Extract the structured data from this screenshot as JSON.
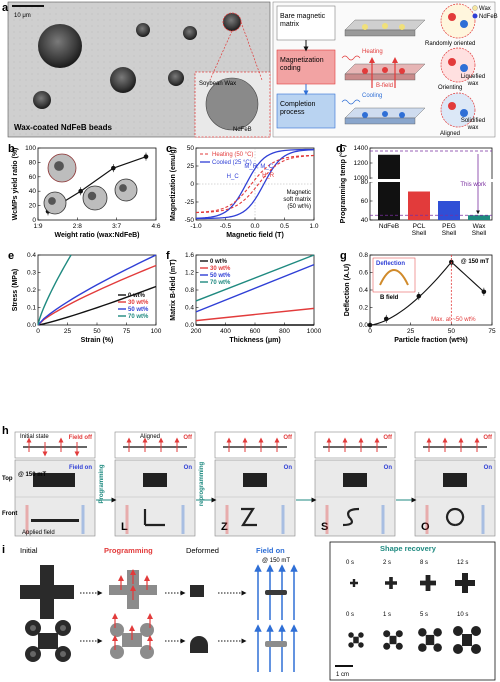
{
  "panel_a": {
    "label": "a",
    "scale": "10 μm",
    "caption": "Wax-coated NdFeB beads",
    "inset_wax": "Soybean\nWax",
    "inset_ndfeb": "NdFeB",
    "legend_wax": "Wax",
    "legend_ndfeb": "NdFeB",
    "steps": [
      {
        "name": "Bare magnetic\nmatrix",
        "note": "Randomly oriented",
        "extra": ""
      },
      {
        "name": "Magnetization\ncoding",
        "note": "Liquefied\nwax",
        "extra": "Heating",
        "extra2": "B-field",
        "note2": "Orienting"
      },
      {
        "name": "Completion\nprocess",
        "note": "Solidified\nwax",
        "extra": "Cooling",
        "note2": "Aligned"
      }
    ],
    "colors": {
      "red": "#e23b3b",
      "blue": "#2f6fd6",
      "pink": "#f7c6c6",
      "lightblue": "#b9d3f1"
    }
  },
  "panel_b": {
    "label": "b",
    "ylabel": "WcMPs yield ratio (%)",
    "xlabel": "Weight ratio (wax:NdFeB)",
    "ticks_y": [
      "0",
      "20",
      "40",
      "60",
      "80",
      "100"
    ],
    "chart_data": {
      "type": "line",
      "categories": [
        "1:9",
        "2:8",
        "3:7",
        "4:6"
      ],
      "values": [
        12,
        40,
        72,
        88
      ],
      "ylim": [
        0,
        100
      ]
    }
  },
  "panel_c": {
    "label": "c",
    "ylabel": "Magnetization (emu/g)",
    "xlabel": "Magnetic field (T)",
    "legend": [
      "Heating (50 °C)",
      "Cooled (25 °C)"
    ],
    "ticks_x": [
      "-1.0",
      "-0.5",
      "0.0",
      "0.5",
      "1.0"
    ],
    "ticks_y": [
      "-50",
      "-25",
      "0",
      "25",
      "50"
    ],
    "labels": {
      "mr": "M_R, M_C",
      "hc": "H_C",
      "hr": "H_R",
      "note": "Magnetic\nsoft matrix\n(50 wt%)"
    }
  },
  "panel_d": {
    "label": "d",
    "ylabel": "Programming temp (°C)",
    "ticks_y": [
      "40",
      "60",
      "80",
      "1000",
      "1200",
      "1400"
    ],
    "note": "This work",
    "chart_data": {
      "type": "bar",
      "categories": [
        "NdFeB",
        "PCL\nShell",
        "PEG\nShell",
        "Wax\nShell"
      ],
      "values": [
        1310,
        70,
        60,
        45
      ],
      "colors": [
        "#111111",
        "#e23b3b",
        "#2f4fd6",
        "#1f8a80"
      ]
    }
  },
  "panel_e": {
    "label": "e",
    "ylabel": "Stress (MPa)",
    "xlabel": "Strain (%)",
    "ticks_x": [
      "0",
      "25",
      "50",
      "75",
      "100"
    ],
    "ticks_y": [
      "0.0",
      "0.1",
      "0.2",
      "0.3",
      "0.4"
    ],
    "chart_data": {
      "type": "line",
      "series": [
        {
          "name": "0 wt%",
          "color": "#111111",
          "x": [
            0,
            100
          ],
          "y": [
            0,
            0.22
          ]
        },
        {
          "name": "30 wt%",
          "color": "#e23b3b",
          "x": [
            0,
            100
          ],
          "y": [
            0,
            0.34
          ]
        },
        {
          "name": "50 wt%",
          "color": "#2f3fd6",
          "x": [
            0,
            100
          ],
          "y": [
            0,
            0.4
          ]
        },
        {
          "name": "70 wt%",
          "color": "#1f8a80",
          "x": [
            0,
            28
          ],
          "y": [
            0,
            0.4
          ]
        }
      ]
    }
  },
  "panel_f": {
    "label": "f",
    "ylabel": "Matrix B-field (mT)",
    "xlabel": "Thickness (μm)",
    "ticks_x": [
      "200",
      "400",
      "600",
      "800",
      "1000"
    ],
    "ticks_y": [
      "0.0",
      "0.4",
      "0.8",
      "1.2",
      "1.6"
    ],
    "chart_data": {
      "type": "line",
      "series": [
        {
          "name": "0 wt%",
          "color": "#111111",
          "x": [
            200,
            1000
          ],
          "y": [
            0.0,
            0.0
          ]
        },
        {
          "name": "30 wt%",
          "color": "#e23b3b",
          "x": [
            200,
            1000
          ],
          "y": [
            0.1,
            0.38
          ]
        },
        {
          "name": "50 wt%",
          "color": "#2f3fd6",
          "x": [
            200,
            1000
          ],
          "y": [
            0.3,
            1.38
          ]
        },
        {
          "name": "70 wt%",
          "color": "#1f8a80",
          "x": [
            200,
            1000
          ],
          "y": [
            0.55,
            1.78
          ]
        }
      ]
    }
  },
  "panel_g": {
    "label": "g",
    "ylabel": "Deflection (A.U)",
    "xlabel": "Particle fraction (wt%)",
    "tag": "@ 150 mT",
    "note": "Max. at ~50 wt%",
    "inset_top": "Deflection",
    "inset_bottom": "B field",
    "ticks_x": [
      "0",
      "25",
      "50",
      "75"
    ],
    "ticks_y": [
      "0.0",
      "0.2",
      "0.4",
      "0.6",
      "0.8"
    ],
    "chart_data": {
      "type": "line",
      "x": [
        0,
        10,
        30,
        50,
        70
      ],
      "y": [
        0.0,
        0.07,
        0.33,
        0.72,
        0.38
      ],
      "ylim": [
        0,
        0.8
      ]
    }
  },
  "panel_h": {
    "label": "h",
    "field_off": "Field off",
    "field_on": "Field on",
    "off": "Off",
    "on": "On",
    "initial": "Initial state",
    "aligned": "Aligned",
    "mt": "@ 150 mT",
    "top": "Top",
    "front": "Front",
    "applied": "Applied field",
    "programming": "Programming",
    "reprogramming": "reprogramming",
    "letters": [
      "L",
      "Z",
      "S",
      "O"
    ]
  },
  "panel_i": {
    "label": "i",
    "cols": [
      "Initial",
      "Programming",
      "Deformed",
      "Field on"
    ],
    "mt": "@ 150 mT",
    "recovery_title": "Shape recovery",
    "times_top": [
      "0 s",
      "2 s",
      "8 s",
      "12 s"
    ],
    "times_bottom": [
      "0 s",
      "1 s",
      "5 s",
      "10 s"
    ],
    "scale": "1 cm"
  }
}
